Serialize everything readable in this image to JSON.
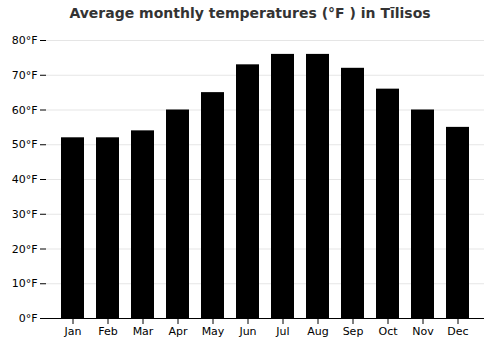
{
  "chart_data": {
    "type": "bar",
    "title": "Average monthly temperatures (°F ) in Tīlisos",
    "categories": [
      "Jan",
      "Feb",
      "Mar",
      "Apr",
      "May",
      "Jun",
      "Jul",
      "Aug",
      "Sep",
      "Oct",
      "Nov",
      "Dec"
    ],
    "values": [
      52,
      52,
      54,
      60,
      65,
      73,
      76,
      76,
      72,
      66,
      60,
      55
    ],
    "ylim": [
      0,
      80
    ],
    "yticks": [
      {
        "value": 0,
        "label": "0°F"
      },
      {
        "value": 10,
        "label": "10°F"
      },
      {
        "value": 20,
        "label": "20°F"
      },
      {
        "value": 30,
        "label": "30°F"
      },
      {
        "value": 40,
        "label": "40°F"
      },
      {
        "value": 50,
        "label": "50°F"
      },
      {
        "value": 60,
        "label": "60°F"
      },
      {
        "value": 70,
        "label": "70°F"
      },
      {
        "value": 80,
        "label": "80°F"
      }
    ],
    "grid": true
  }
}
